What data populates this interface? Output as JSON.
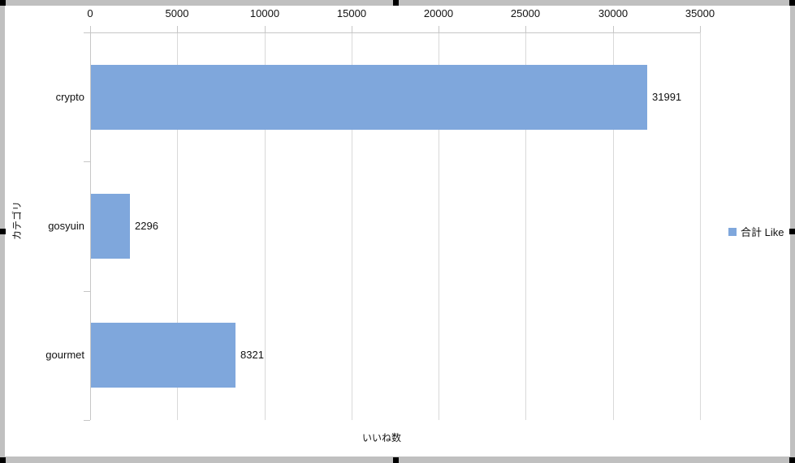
{
  "chart_data": {
    "type": "bar",
    "orientation": "horizontal",
    "categories": [
      "crypto",
      "gosyuin",
      "gourmet"
    ],
    "series": [
      {
        "name": "合計 Like",
        "values": [
          31991,
          2296,
          8321
        ]
      }
    ],
    "data_labels": [
      "31991",
      "2296",
      "8321"
    ],
    "title": "",
    "xlabel": "いいね数",
    "ylabel": "カテゴリ",
    "xlim": [
      0,
      35000
    ],
    "xticks": [
      0,
      5000,
      10000,
      15000,
      20000,
      25000,
      30000,
      35000
    ],
    "xtick_labels": [
      "0",
      "5000",
      "10000",
      "15000",
      "20000",
      "25000",
      "30000",
      "35000"
    ],
    "grid": true,
    "value_axis_position": "top",
    "legend_position": "right",
    "bar_color": "#7fa7dc"
  },
  "legend": {
    "label": "合計 Like",
    "marker_color": "#7fa7dc"
  },
  "axis_titles": {
    "x": "いいね数",
    "y": "カテゴリ"
  },
  "colors": {
    "bar": "#7fa7dc",
    "gridline": "#d9d9d9",
    "axis": "#c6c6c6",
    "frame_border": "#c0c0c0",
    "handle": "#000000",
    "text": "#111111"
  }
}
